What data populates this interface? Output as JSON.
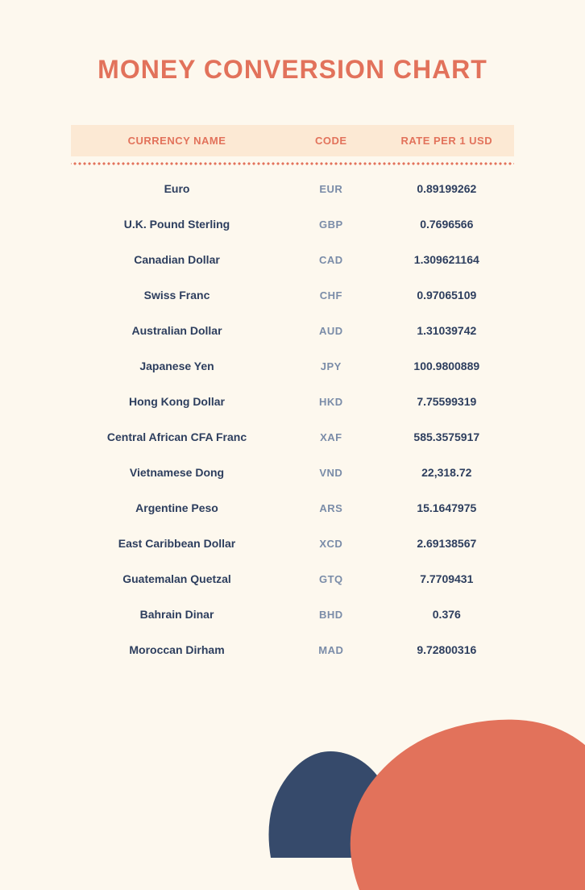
{
  "title": "MONEY CONVERSION CHART",
  "colors": {
    "background": "#fdf8ee",
    "accent_orange": "#e2725b",
    "header_bg": "#fce9d4",
    "text_dark": "#2d3e5e",
    "text_muted": "#7a8ca8",
    "blob_orange": "#e2725b",
    "blob_navy": "#364a6b"
  },
  "typography": {
    "title_fontsize": 32,
    "title_weight": 800,
    "header_fontsize": 13,
    "body_fontsize": 14
  },
  "headers": {
    "name": "CURRENCY NAME",
    "code": "CODE",
    "rate": "RATE PER 1 USD"
  },
  "rows": [
    {
      "name": "Euro",
      "code": "EUR",
      "rate": "0.89199262"
    },
    {
      "name": "U.K. Pound Sterling",
      "code": "GBP",
      "rate": "0.7696566"
    },
    {
      "name": "Canadian Dollar",
      "code": "CAD",
      "rate": "1.309621164"
    },
    {
      "name": "Swiss Franc",
      "code": "CHF",
      "rate": "0.97065109"
    },
    {
      "name": "Australian Dollar",
      "code": "AUD",
      "rate": "1.31039742"
    },
    {
      "name": "Japanese Yen",
      "code": "JPY",
      "rate": "100.9800889"
    },
    {
      "name": "Hong Kong Dollar",
      "code": "HKD",
      "rate": "7.75599319"
    },
    {
      "name": "Central African CFA Franc",
      "code": "XAF",
      "rate": "585.3575917"
    },
    {
      "name": "Vietnamese Dong",
      "code": "VND",
      "rate": "22,318.72"
    },
    {
      "name": "Argentine Peso",
      "code": "ARS",
      "rate": "15.1647975"
    },
    {
      "name": "East Caribbean Dollar",
      "code": "XCD",
      "rate": "2.69138567"
    },
    {
      "name": "Guatemalan Quetzal",
      "code": "GTQ",
      "rate": "7.7709431"
    },
    {
      "name": "Bahrain Dinar",
      "code": "BHD",
      "rate": "0.376"
    },
    {
      "name": "Moroccan Dirham",
      "code": "MAD",
      "rate": "9.72800316"
    }
  ]
}
